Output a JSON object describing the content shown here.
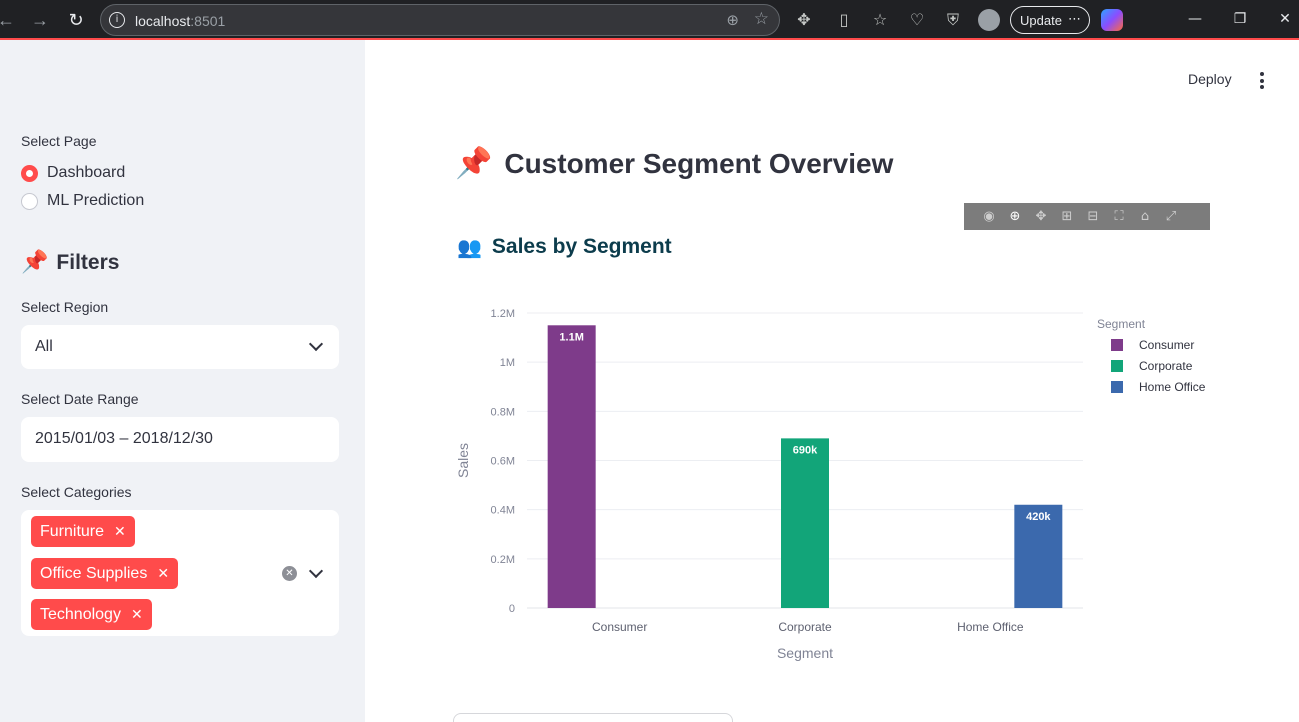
{
  "browser": {
    "url_host": "localhost",
    "url_port": ":8501",
    "update_label": "Update"
  },
  "sidebar": {
    "page_select_label": "Select Page",
    "pages": [
      {
        "label": "Dashboard",
        "selected": true
      },
      {
        "label": "ML Prediction",
        "selected": false
      }
    ],
    "filters_heading": "Filters",
    "region_label": "Select Region",
    "region_value": "All",
    "date_label": "Select Date Range",
    "date_value": "2015/01/03 – 2018/12/30",
    "categories_label": "Select Categories",
    "categories": [
      "Furniture",
      "Office Supplies",
      "Technology"
    ]
  },
  "header": {
    "deploy_label": "Deploy"
  },
  "main": {
    "title": "Customer Segment Overview",
    "chart_heading": "Sales by Segment"
  },
  "colors": {
    "accent": "#ff4b4b",
    "consumer": "#7e3b8a",
    "corporate": "#12a579",
    "home_office": "#3b69ad"
  },
  "chart_data": {
    "type": "bar",
    "categories": [
      "Consumer",
      "Corporate",
      "Home Office"
    ],
    "values": [
      1150000,
      690000,
      420000
    ],
    "data_labels": [
      "1.1M",
      "690k",
      "420k"
    ],
    "xlabel": "Segment",
    "ylabel": "Sales",
    "ylim": [
      0,
      1200000
    ],
    "y_ticks": [
      0,
      200000,
      400000,
      600000,
      800000,
      1000000,
      1200000
    ],
    "y_tick_labels": [
      "0",
      "0.2M",
      "0.4M",
      "0.6M",
      "0.8M",
      "1M",
      "1.2M"
    ],
    "legend_title": "Segment",
    "legend_position": "top-right",
    "series_colors": [
      "#7e3b8a",
      "#12a579",
      "#3b69ad"
    ],
    "grid": true
  }
}
